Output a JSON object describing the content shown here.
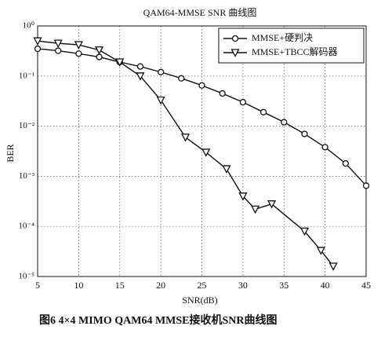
{
  "chart_data": {
    "type": "line",
    "title": "QAM64-MMSE SNR 曲线图",
    "xlabel": "SNR(dB)",
    "ylabel": "BER",
    "caption": "图6   4×4 MIMO QAM64 MMSE接收机SNR曲线图",
    "log_y": true,
    "grid": true,
    "legend": "upper right",
    "xlim": [
      5,
      45
    ],
    "xticks": [
      5,
      10,
      15,
      20,
      25,
      30,
      35,
      40,
      45
    ],
    "ylim": [
      1e-05,
      1
    ],
    "yticks": [
      {
        "value": 1e-05,
        "label": "10⁻⁵"
      },
      {
        "value": 0.0001,
        "label": "10⁻⁴"
      },
      {
        "value": 0.001,
        "label": "10⁻³"
      },
      {
        "value": 0.01,
        "label": "10⁻²"
      },
      {
        "value": 0.1,
        "label": "10⁻¹"
      },
      {
        "value": 1,
        "label": "10⁰"
      }
    ],
    "series": [
      {
        "name": "MMSE+硬判决",
        "color": "#111111",
        "marker": "circle",
        "x": [
          5,
          7.5,
          10,
          12.5,
          15,
          17.5,
          20,
          22.5,
          25,
          27.5,
          30,
          32.5,
          35,
          37.5,
          40,
          42.5,
          45
        ],
        "values": [
          0.35,
          0.32,
          0.28,
          0.24,
          0.19,
          0.155,
          0.12,
          0.09,
          0.065,
          0.045,
          0.03,
          0.019,
          0.012,
          0.007,
          0.0038,
          0.0018,
          0.00065
        ]
      },
      {
        "name": "MMSE+TBCC解码器",
        "color": "#111111",
        "marker": "triangle",
        "x": [
          5,
          7.5,
          10,
          12.5,
          15,
          17.5,
          20,
          23,
          25.5,
          28,
          30,
          31.5,
          33.5,
          37.5,
          39.5,
          41
        ],
        "values": [
          0.5,
          0.45,
          0.42,
          0.33,
          0.19,
          0.1,
          0.033,
          0.006,
          0.003,
          0.0014,
          0.0004,
          0.00022,
          0.00028,
          8e-05,
          3.3e-05,
          1.6e-05
        ]
      }
    ]
  }
}
